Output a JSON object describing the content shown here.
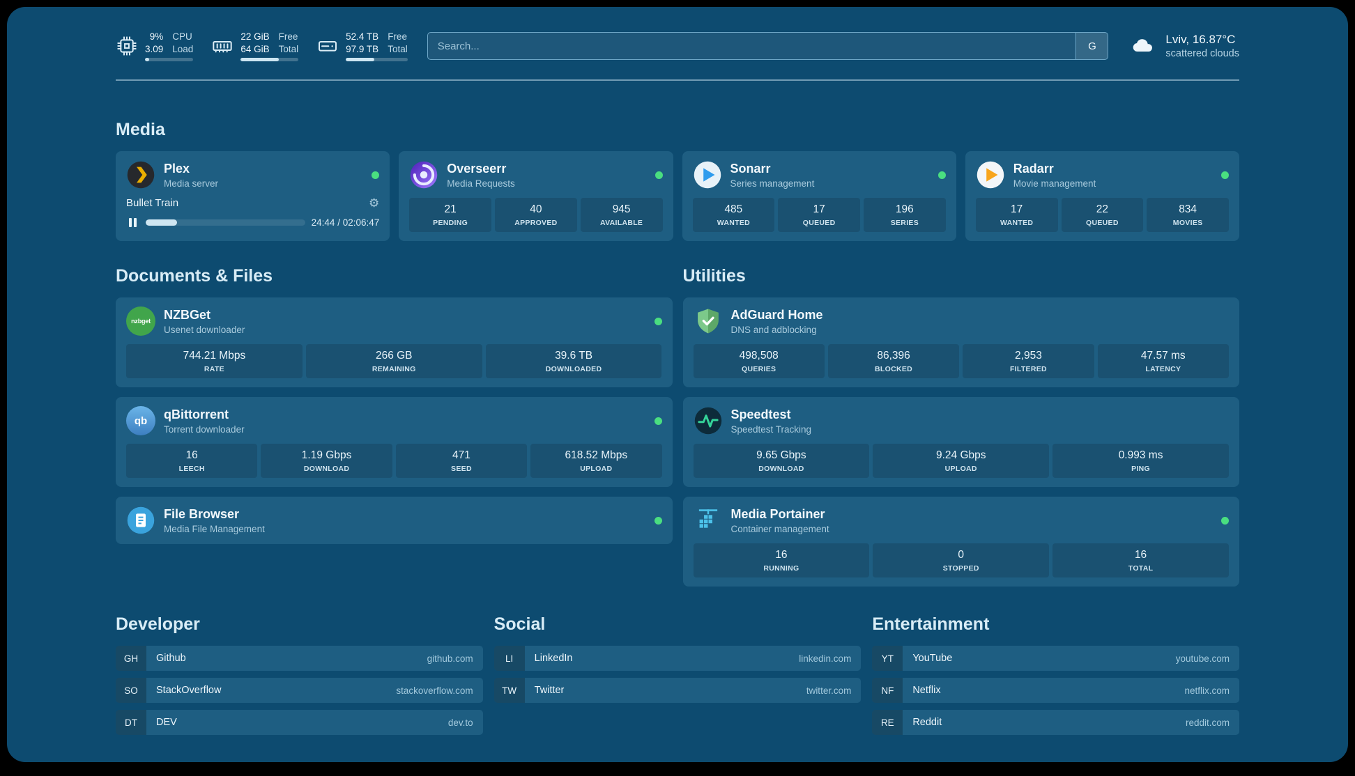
{
  "colors": {
    "background": "#0d4b70",
    "card": "#1e5e82",
    "status_online": "#4ade80",
    "plex_amber": "#ebaf00",
    "overseerr_purple": "#8b5cf6",
    "sonarr_blue": "#2f9ced",
    "radarr_orange": "#f8a51b",
    "nzbget_green": "#41a54b",
    "qbittorrent_blue": "#3d7fc1",
    "adguard_green": "#68bc71",
    "speedtest_green": "#34d399",
    "filebrowser_blue": "#3aa3dd",
    "portainer_blue": "#4cc2ea"
  },
  "icons": {
    "gear": "⚙"
  },
  "topbar": {
    "cpu": {
      "value_top": "9%",
      "value_bottom": "3.09",
      "label_top": "CPU",
      "label_bottom": "Load",
      "progress": 9
    },
    "memory": {
      "value_top": "22 GiB",
      "value_bottom": "64 GiB",
      "label_top": "Free",
      "label_bottom": "Total",
      "progress": 66
    },
    "disk": {
      "value_top": "52.4 TB",
      "value_bottom": "97.9 TB",
      "label_top": "Free",
      "label_bottom": "Total",
      "progress": 46
    },
    "search": {
      "placeholder": "Search...",
      "provider": "G"
    },
    "weather": {
      "location": "Lviv, 16.87°C",
      "condition": "scattered clouds"
    }
  },
  "media": {
    "title": "Media",
    "plex": {
      "name": "Plex",
      "desc": "Media server",
      "now_playing": "Bullet Train",
      "time": "24:44 / 02:06:47",
      "progress": 20
    },
    "overseerr": {
      "name": "Overseerr",
      "desc": "Media Requests",
      "stats": [
        {
          "value": "21",
          "label": "PENDING"
        },
        {
          "value": "40",
          "label": "APPROVED"
        },
        {
          "value": "945",
          "label": "AVAILABLE"
        }
      ]
    },
    "sonarr": {
      "name": "Sonarr",
      "desc": "Series management",
      "stats": [
        {
          "value": "485",
          "label": "WANTED"
        },
        {
          "value": "17",
          "label": "QUEUED"
        },
        {
          "value": "196",
          "label": "SERIES"
        }
      ]
    },
    "radarr": {
      "name": "Radarr",
      "desc": "Movie management",
      "stats": [
        {
          "value": "17",
          "label": "WANTED"
        },
        {
          "value": "22",
          "label": "QUEUED"
        },
        {
          "value": "834",
          "label": "MOVIES"
        }
      ]
    }
  },
  "documents": {
    "title": "Documents & Files",
    "nzbget": {
      "name": "NZBGet",
      "desc": "Usenet downloader",
      "icon_text": "nzbget",
      "stats": [
        {
          "value": "744.21 Mbps",
          "label": "RATE"
        },
        {
          "value": "266 GB",
          "label": "REMAINING"
        },
        {
          "value": "39.6 TB",
          "label": "DOWNLOADED"
        }
      ]
    },
    "qbittorrent": {
      "name": "qBittorrent",
      "desc": "Torrent downloader",
      "icon_text": "qb",
      "stats": [
        {
          "value": "16",
          "label": "LEECH"
        },
        {
          "value": "1.19 Gbps",
          "label": "DOWNLOAD"
        },
        {
          "value": "471",
          "label": "SEED"
        },
        {
          "value": "618.52 Mbps",
          "label": "UPLOAD"
        }
      ]
    },
    "filebrowser": {
      "name": "File Browser",
      "desc": "Media File Management"
    }
  },
  "utilities": {
    "title": "Utilities",
    "adguard": {
      "name": "AdGuard Home",
      "desc": "DNS and adblocking",
      "stats": [
        {
          "value": "498,508",
          "label": "QUERIES"
        },
        {
          "value": "86,396",
          "label": "BLOCKED"
        },
        {
          "value": "2,953",
          "label": "FILTERED"
        },
        {
          "value": "47.57 ms",
          "label": "LATENCY"
        }
      ]
    },
    "speedtest": {
      "name": "Speedtest",
      "desc": "Speedtest Tracking",
      "stats": [
        {
          "value": "9.65 Gbps",
          "label": "DOWNLOAD"
        },
        {
          "value": "9.24 Gbps",
          "label": "UPLOAD"
        },
        {
          "value": "0.993 ms",
          "label": "PING"
        }
      ]
    },
    "portainer": {
      "name": "Media Portainer",
      "desc": "Container management",
      "stats": [
        {
          "value": "16",
          "label": "RUNNING"
        },
        {
          "value": "0",
          "label": "STOPPED"
        },
        {
          "value": "16",
          "label": "TOTAL"
        }
      ]
    }
  },
  "bookmarks": {
    "developer": {
      "title": "Developer",
      "items": [
        {
          "abbr": "GH",
          "name": "Github",
          "url": "github.com"
        },
        {
          "abbr": "SO",
          "name": "StackOverflow",
          "url": "stackoverflow.com"
        },
        {
          "abbr": "DT",
          "name": "DEV",
          "url": "dev.to"
        }
      ]
    },
    "social": {
      "title": "Social",
      "items": [
        {
          "abbr": "LI",
          "name": "LinkedIn",
          "url": "linkedin.com"
        },
        {
          "abbr": "TW",
          "name": "Twitter",
          "url": "twitter.com"
        }
      ]
    },
    "entertainment": {
      "title": "Entertainment",
      "items": [
        {
          "abbr": "YT",
          "name": "YouTube",
          "url": "youtube.com"
        },
        {
          "abbr": "NF",
          "name": "Netflix",
          "url": "netflix.com"
        },
        {
          "abbr": "RE",
          "name": "Reddit",
          "url": "reddit.com"
        }
      ]
    }
  }
}
